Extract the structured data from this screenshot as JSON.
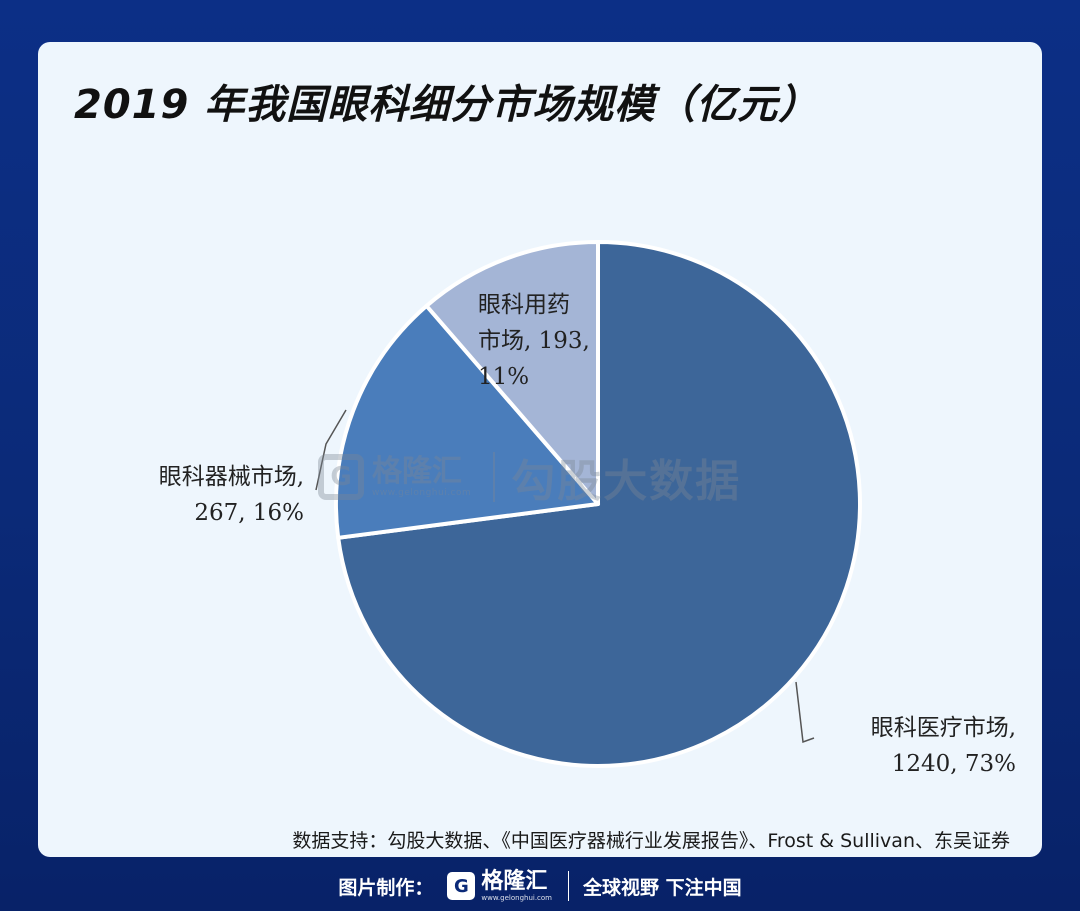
{
  "title": "2019 年我国眼科细分市场规模（亿元）",
  "chart_data": {
    "type": "pie",
    "title": "2019 年我国眼科细分市场规模（亿元）",
    "slices": [
      {
        "line1": "眼科医疗市场,",
        "line2": "1240, 73%",
        "value": 1240,
        "percent": 73,
        "color": "#3d6699"
      },
      {
        "line1": "眼科器械市场,",
        "line2": "267, 16%",
        "value": 267,
        "percent": 16,
        "color": "#4a7dbb"
      },
      {
        "line1": "眼科用药",
        "line2": "市场, 193,",
        "line3": "11%",
        "value": 193,
        "percent": 11,
        "color": "#a4b5d6"
      }
    ]
  },
  "watermark": {
    "logo_letter": "G",
    "brand": "格隆汇",
    "url": "www.gelonghui.com",
    "text": "勾股大数据"
  },
  "source": "数据支持：勾股大数据、《中国医疗器械行业发展报告》、Frost & Sullivan、东吴证券",
  "footer": {
    "made_by": "图片制作：",
    "logo_letter": "G",
    "brand": "格隆汇",
    "url": "www.gelonghui.com",
    "slogan": "全球视野 下注中国"
  }
}
